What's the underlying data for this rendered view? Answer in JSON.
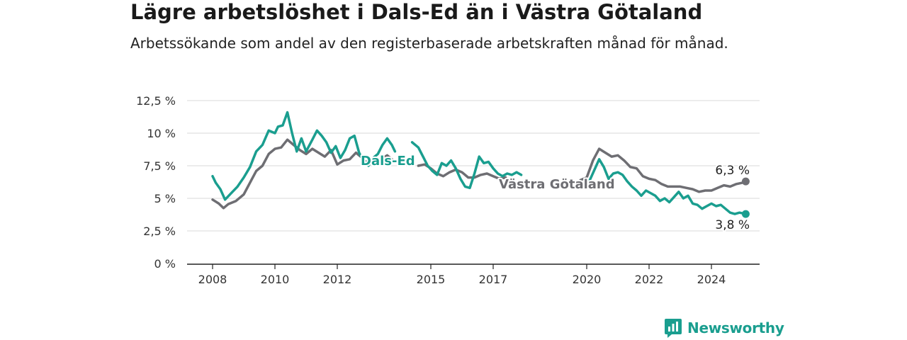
{
  "header": {
    "title": "Lägre arbetslöshet i Dals-Ed än i Västra Götaland",
    "subtitle": "Arbetssökande som andel av den registerbaserade arbetskraften månad för månad."
  },
  "brand": {
    "name": "Newsworthy",
    "icon": "bar-chart-icon",
    "color": "#1a9e8f"
  },
  "chart_data": {
    "type": "line",
    "ylim": [
      0,
      12.5
    ],
    "xlim": [
      2008.0,
      2025.4
    ],
    "y_ticks": [
      {
        "value": 0,
        "label": "0 %"
      },
      {
        "value": 2.5,
        "label": "2,5 %"
      },
      {
        "value": 5,
        "label": "5 %"
      },
      {
        "value": 7.5,
        "label": "7,5 %"
      },
      {
        "value": 10,
        "label": "10 %"
      },
      {
        "value": 12.5,
        "label": "12,5 %"
      }
    ],
    "x_ticks": [
      {
        "value": 2008,
        "label": "2008"
      },
      {
        "value": 2010,
        "label": "2010"
      },
      {
        "value": 2012,
        "label": "2012"
      },
      {
        "value": 2015,
        "label": "2015"
      },
      {
        "value": 2017,
        "label": "2017"
      },
      {
        "value": 2020,
        "label": "2020"
      },
      {
        "value": 2022,
        "label": "2022"
      },
      {
        "value": 2024,
        "label": "2024"
      }
    ],
    "grid": true,
    "series": [
      {
        "name": "Västra Götaland",
        "color": "#6e6e73",
        "end_label": "6,3 %",
        "segments": [
          [
            [
              2008.0,
              4.9
            ],
            [
              2008.2,
              4.6
            ],
            [
              2008.35,
              4.25
            ],
            [
              2008.5,
              4.55
            ],
            [
              2008.75,
              4.8
            ],
            [
              2009.0,
              5.3
            ],
            [
              2009.2,
              6.2
            ],
            [
              2009.4,
              7.1
            ],
            [
              2009.6,
              7.5
            ],
            [
              2009.8,
              8.4
            ],
            [
              2010.0,
              8.8
            ],
            [
              2010.2,
              8.9
            ],
            [
              2010.4,
              9.5
            ],
            [
              2010.6,
              9.1
            ],
            [
              2010.8,
              8.7
            ],
            [
              2011.0,
              8.4
            ],
            [
              2011.2,
              8.8
            ],
            [
              2011.4,
              8.5
            ],
            [
              2011.6,
              8.2
            ],
            [
              2011.8,
              8.7
            ],
            [
              2012.0,
              7.6
            ],
            [
              2012.2,
              7.9
            ],
            [
              2012.4,
              8.0
            ],
            [
              2012.6,
              8.5
            ],
            [
              2012.8,
              8.1
            ],
            [
              2013.0,
              7.6
            ],
            [
              2013.2,
              7.9
            ],
            [
              2013.4,
              8.0
            ],
            [
              2013.6,
              8.3
            ],
            [
              2013.8,
              7.9
            ]
          ],
          [
            [
              2014.6,
              7.5
            ],
            [
              2014.8,
              7.6
            ],
            [
              2015.0,
              7.3
            ],
            [
              2015.2,
              6.9
            ],
            [
              2015.4,
              6.7
            ],
            [
              2015.6,
              7.0
            ],
            [
              2015.8,
              7.2
            ],
            [
              2016.0,
              7.0
            ],
            [
              2016.2,
              6.6
            ],
            [
              2016.4,
              6.6
            ],
            [
              2016.6,
              6.8
            ],
            [
              2016.8,
              6.9
            ],
            [
              2017.0,
              6.7
            ],
            [
              2017.2,
              6.5
            ],
            [
              2017.4,
              6.6
            ]
          ],
          [
            [
              2019.8,
              6.4
            ],
            [
              2020.0,
              6.6
            ],
            [
              2020.2,
              7.9
            ],
            [
              2020.4,
              8.8
            ],
            [
              2020.6,
              8.5
            ],
            [
              2020.8,
              8.2
            ],
            [
              2021.0,
              8.3
            ],
            [
              2021.2,
              7.9
            ],
            [
              2021.4,
              7.4
            ],
            [
              2021.6,
              7.3
            ],
            [
              2021.8,
              6.7
            ],
            [
              2022.0,
              6.5
            ],
            [
              2022.2,
              6.4
            ],
            [
              2022.4,
              6.1
            ],
            [
              2022.6,
              5.9
            ],
            [
              2022.8,
              5.9
            ],
            [
              2023.0,
              5.9
            ],
            [
              2023.2,
              5.8
            ],
            [
              2023.4,
              5.7
            ],
            [
              2023.6,
              5.5
            ],
            [
              2023.8,
              5.6
            ],
            [
              2024.0,
              5.6
            ],
            [
              2024.2,
              5.8
            ],
            [
              2024.4,
              6.0
            ],
            [
              2024.6,
              5.9
            ],
            [
              2024.8,
              6.1
            ],
            [
              2025.0,
              6.2
            ],
            [
              2025.1,
              6.3
            ]
          ]
        ]
      },
      {
        "name": "Dals-Ed",
        "color": "#1a9e8f",
        "end_label": "3,8 %",
        "segments": [
          [
            [
              2008.0,
              6.7
            ],
            [
              2008.1,
              6.2
            ],
            [
              2008.25,
              5.7
            ],
            [
              2008.4,
              4.9
            ],
            [
              2008.6,
              5.4
            ],
            [
              2008.8,
              5.9
            ],
            [
              2009.0,
              6.6
            ],
            [
              2009.2,
              7.4
            ],
            [
              2009.4,
              8.6
            ],
            [
              2009.6,
              9.1
            ],
            [
              2009.8,
              10.2
            ],
            [
              2010.0,
              10.0
            ],
            [
              2010.1,
              10.5
            ],
            [
              2010.25,
              10.6
            ],
            [
              2010.4,
              11.6
            ],
            [
              2010.55,
              10.0
            ],
            [
              2010.7,
              8.6
            ],
            [
              2010.85,
              9.6
            ],
            [
              2011.0,
              8.6
            ],
            [
              2011.2,
              9.5
            ],
            [
              2011.35,
              10.2
            ],
            [
              2011.5,
              9.8
            ],
            [
              2011.65,
              9.3
            ],
            [
              2011.8,
              8.5
            ],
            [
              2011.95,
              9.0
            ],
            [
              2012.1,
              8.1
            ],
            [
              2012.25,
              8.7
            ],
            [
              2012.4,
              9.6
            ],
            [
              2012.55,
              9.8
            ],
            [
              2012.7,
              8.5
            ],
            [
              2012.85,
              7.8
            ],
            [
              2013.0,
              7.5
            ],
            [
              2013.15,
              8.1
            ],
            [
              2013.3,
              8.4
            ],
            [
              2013.45,
              9.1
            ],
            [
              2013.6,
              9.6
            ],
            [
              2013.75,
              9.1
            ],
            [
              2013.85,
              8.6
            ]
          ],
          [
            [
              2014.4,
              9.3
            ],
            [
              2014.6,
              8.9
            ],
            [
              2014.75,
              8.2
            ],
            [
              2014.9,
              7.5
            ],
            [
              2015.05,
              7.1
            ],
            [
              2015.2,
              6.8
            ],
            [
              2015.35,
              7.7
            ],
            [
              2015.5,
              7.5
            ],
            [
              2015.65,
              7.9
            ],
            [
              2015.8,
              7.3
            ],
            [
              2015.95,
              6.5
            ],
            [
              2016.1,
              5.9
            ],
            [
              2016.25,
              5.8
            ],
            [
              2016.4,
              6.9
            ],
            [
              2016.55,
              8.2
            ],
            [
              2016.7,
              7.7
            ],
            [
              2016.85,
              7.8
            ],
            [
              2017.0,
              7.3
            ],
            [
              2017.15,
              6.9
            ],
            [
              2017.3,
              6.7
            ],
            [
              2017.45,
              6.9
            ],
            [
              2017.6,
              6.8
            ],
            [
              2017.75,
              7.0
            ],
            [
              2017.9,
              6.8
            ]
          ],
          [
            [
              2020.1,
              6.4
            ],
            [
              2020.25,
              7.2
            ],
            [
              2020.4,
              8.0
            ],
            [
              2020.55,
              7.4
            ],
            [
              2020.7,
              6.5
            ],
            [
              2020.85,
              6.9
            ],
            [
              2021.0,
              7.0
            ],
            [
              2021.15,
              6.8
            ],
            [
              2021.3,
              6.3
            ],
            [
              2021.45,
              5.9
            ],
            [
              2021.6,
              5.6
            ],
            [
              2021.75,
              5.2
            ],
            [
              2021.9,
              5.6
            ],
            [
              2022.05,
              5.4
            ],
            [
              2022.2,
              5.2
            ],
            [
              2022.35,
              4.8
            ],
            [
              2022.5,
              5.0
            ],
            [
              2022.65,
              4.7
            ],
            [
              2022.8,
              5.1
            ],
            [
              2022.95,
              5.5
            ],
            [
              2023.1,
              5.0
            ],
            [
              2023.25,
              5.2
            ],
            [
              2023.4,
              4.6
            ],
            [
              2023.55,
              4.5
            ],
            [
              2023.7,
              4.2
            ],
            [
              2023.85,
              4.4
            ],
            [
              2024.0,
              4.6
            ],
            [
              2024.15,
              4.4
            ],
            [
              2024.3,
              4.5
            ],
            [
              2024.45,
              4.2
            ],
            [
              2024.6,
              3.9
            ],
            [
              2024.75,
              3.8
            ],
            [
              2024.9,
              3.9
            ],
            [
              2025.1,
              3.8
            ]
          ]
        ]
      }
    ]
  }
}
